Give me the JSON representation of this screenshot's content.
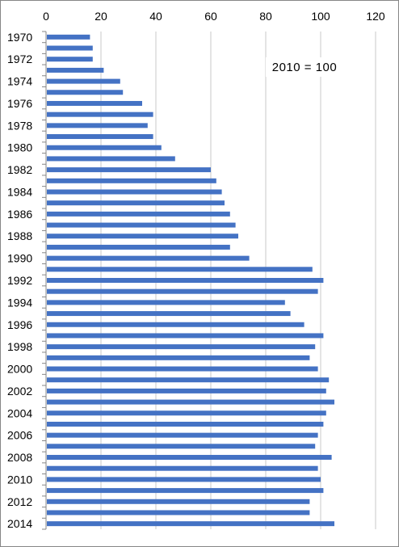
{
  "chart_data": {
    "type": "bar",
    "orientation": "horizontal",
    "title": "",
    "xlabel": "",
    "ylabel": "",
    "annotation": "2010 = 100",
    "xlim": [
      0,
      120
    ],
    "x_ticks": [
      "0",
      "20",
      "40",
      "60",
      "80",
      "100",
      "120"
    ],
    "x_tick_values": [
      0,
      20,
      40,
      60,
      80,
      100,
      120
    ],
    "x_axis_position": "top",
    "grid": "vertical",
    "bar_color": "#4472C4",
    "categories": [
      "1970",
      "1971",
      "1972",
      "1973",
      "1974",
      "1975",
      "1976",
      "1977",
      "1978",
      "1979",
      "1980",
      "1981",
      "1982",
      "1983",
      "1984",
      "1985",
      "1986",
      "1987",
      "1988",
      "1989",
      "1990",
      "1991",
      "1992",
      "1993",
      "1994",
      "1995",
      "1996",
      "1997",
      "1998",
      "1999",
      "2000",
      "2001",
      "2002",
      "2003",
      "2004",
      "2005",
      "2006",
      "2007",
      "2008",
      "2009",
      "2010",
      "2011",
      "2012",
      "2013",
      "2014"
    ],
    "category_labels_shown": [
      "1970",
      "",
      "1972",
      "",
      "1974",
      "",
      "1976",
      "",
      "1978",
      "",
      "1980",
      "",
      "1982",
      "",
      "1984",
      "",
      "1986",
      "",
      "1988",
      "",
      "1990",
      "",
      "1992",
      "",
      "1994",
      "",
      "1996",
      "",
      "1998",
      "",
      "2000",
      "",
      "2002",
      "",
      "2004",
      "",
      "2006",
      "",
      "2008",
      "",
      "2010",
      "",
      "2012",
      "",
      "2014"
    ],
    "values": [
      16,
      17,
      17,
      21,
      27,
      28,
      35,
      39,
      37,
      39,
      42,
      47,
      60,
      62,
      64,
      65,
      67,
      69,
      70,
      67,
      74,
      97,
      101,
      99,
      87,
      89,
      94,
      101,
      98,
      96,
      99,
      103,
      102,
      105,
      102,
      101,
      99,
      98,
      104,
      99,
      100,
      101,
      96,
      96,
      105
    ]
  }
}
